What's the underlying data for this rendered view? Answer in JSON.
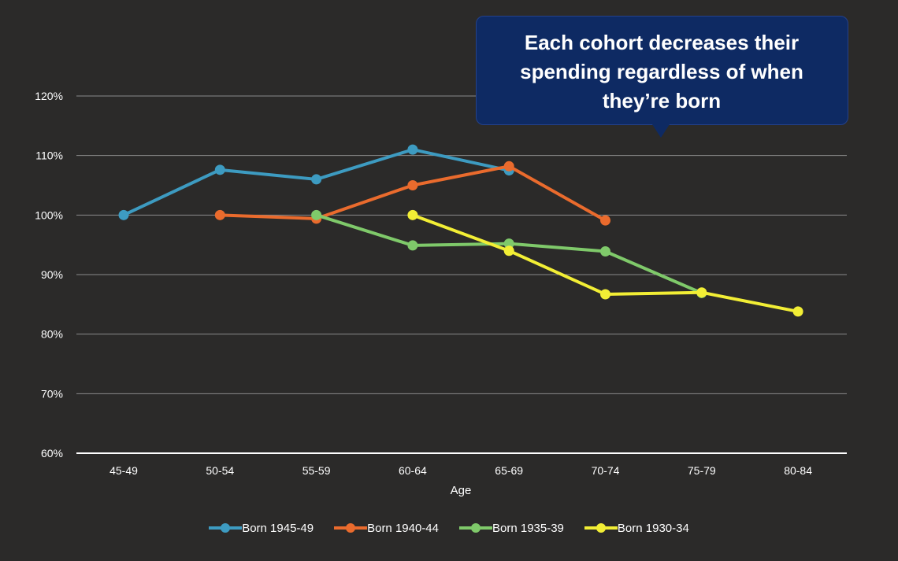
{
  "callout": {
    "text": "Each cohort decreases their spending regardless of when they’re born"
  },
  "chart_data": {
    "type": "line",
    "title": "",
    "xlabel": "Age",
    "ylabel": "",
    "categories": [
      "45-49",
      "50-54",
      "55-59",
      "60-64",
      "65-69",
      "70-74",
      "75-79",
      "80-84"
    ],
    "y_ticks": [
      60,
      70,
      80,
      90,
      100,
      110,
      120
    ],
    "y_tick_labels": [
      "60%",
      "70%",
      "80%",
      "90%",
      "100%",
      "110%",
      "120%"
    ],
    "ylim": [
      60,
      120
    ],
    "grid": true,
    "legend_position": "bottom",
    "series": [
      {
        "name": "Born 1945-49",
        "color": "#3d9bc1",
        "values": [
          100,
          107.6,
          106,
          111,
          107.5,
          null,
          null,
          null
        ]
      },
      {
        "name": "Born 1940-44",
        "color": "#ea6b2d",
        "values": [
          null,
          100,
          99.4,
          105,
          108.2,
          99.1,
          null,
          null
        ]
      },
      {
        "name": "Born 1935-39",
        "color": "#7fc96a",
        "values": [
          null,
          null,
          100,
          94.9,
          95.2,
          93.9,
          86.9,
          null
        ]
      },
      {
        "name": "Born 1930-34",
        "color": "#f2ee35",
        "values": [
          null,
          null,
          null,
          100,
          94,
          86.7,
          87,
          83.8
        ]
      }
    ]
  }
}
